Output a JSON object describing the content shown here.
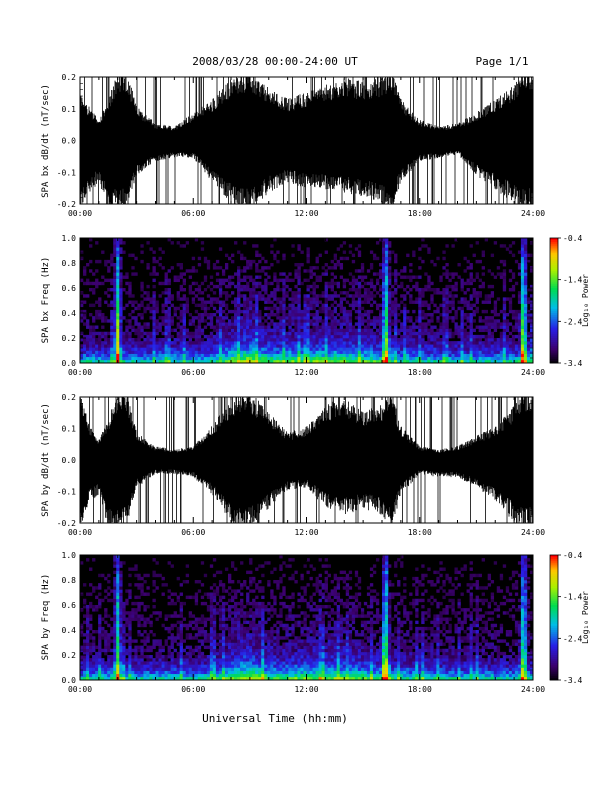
{
  "header": {
    "title": "2008/03/28  00:00-24:00 UT",
    "page": "Page 1/1"
  },
  "xaxis_label": "Universal Time (hh:mm)",
  "time_ticks": [
    "00:00",
    "06:00",
    "12:00",
    "18:00",
    "24:00"
  ],
  "colorbar": {
    "label": "Log₁₀ Power",
    "ticks": [
      "-0.4",
      "-1.4",
      "-2.4",
      "-3.4"
    ],
    "range": [
      -3.4,
      -0.4
    ]
  },
  "chart_data": [
    {
      "type": "line",
      "panel": "waveform-bx",
      "ylabel": "SPA bx dB/dt (nT/sec)",
      "x_range_hours": [
        0,
        24
      ],
      "ylim": [
        -0.2,
        0.2
      ],
      "yticks": [
        "0.2",
        "0.1",
        "0.0",
        "-0.1",
        "-0.2"
      ],
      "envelope": {
        "x_hours": [
          0,
          0.5,
          1,
          1.5,
          2,
          2.5,
          3,
          4,
          5,
          6,
          7,
          8,
          8.5,
          9,
          10,
          11,
          12,
          13,
          14,
          15,
          16,
          16.5,
          17,
          18,
          19,
          20,
          21,
          22,
          23,
          23.5,
          24
        ],
        "upper": [
          0.14,
          0.1,
          0.06,
          0.12,
          0.2,
          0.2,
          0.1,
          0.05,
          0.04,
          0.08,
          0.12,
          0.18,
          0.2,
          0.2,
          0.15,
          0.12,
          0.14,
          0.16,
          0.18,
          0.17,
          0.18,
          0.2,
          0.12,
          0.06,
          0.04,
          0.05,
          0.08,
          0.12,
          0.16,
          0.2,
          0.2
        ],
        "lower": [
          -0.2,
          -0.15,
          -0.12,
          -0.2,
          -0.2,
          -0.2,
          -0.1,
          -0.06,
          -0.05,
          -0.05,
          -0.12,
          -0.18,
          -0.2,
          -0.2,
          -0.15,
          -0.12,
          -0.14,
          -0.14,
          -0.15,
          -0.16,
          -0.18,
          -0.2,
          -0.12,
          -0.06,
          -0.05,
          -0.04,
          -0.1,
          -0.14,
          -0.18,
          -0.2,
          -0.2
        ]
      }
    },
    {
      "type": "heatmap",
      "panel": "spectrogram-bx",
      "ylabel": "SPA bx Freq (Hz)",
      "x_range_hours": [
        0,
        24
      ],
      "ylim": [
        0,
        1.0
      ],
      "yticks": [
        "1.0",
        "0.8",
        "0.6",
        "0.4",
        "0.2",
        "0.0"
      ],
      "value_range": [
        -3.4,
        -0.4
      ],
      "strong_bands_hours": [
        2.0,
        16.2,
        23.5
      ]
    },
    {
      "type": "line",
      "panel": "waveform-by",
      "ylabel": "SPA by dB/dt (nT/sec)",
      "x_range_hours": [
        0,
        24
      ],
      "ylim": [
        -0.2,
        0.2
      ],
      "yticks": [
        "0.2",
        "0.1",
        "0.0",
        "-0.1",
        "-0.2"
      ],
      "envelope": {
        "x_hours": [
          0,
          0.5,
          1,
          1.5,
          2,
          2.5,
          3,
          4,
          5,
          6,
          7,
          8,
          8.5,
          9,
          10,
          11,
          12,
          13,
          14,
          15,
          16,
          16.5,
          17,
          18,
          19,
          20,
          21,
          22,
          23,
          23.5,
          24
        ],
        "upper": [
          0.2,
          0.1,
          0.06,
          0.12,
          0.2,
          0.2,
          0.08,
          0.04,
          0.03,
          0.04,
          0.1,
          0.18,
          0.2,
          0.2,
          0.14,
          0.08,
          0.1,
          0.16,
          0.18,
          0.14,
          0.16,
          0.2,
          0.1,
          0.04,
          0.03,
          0.04,
          0.07,
          0.1,
          0.16,
          0.2,
          0.2
        ],
        "lower": [
          -0.2,
          -0.12,
          -0.1,
          -0.2,
          -0.2,
          -0.2,
          -0.08,
          -0.04,
          -0.04,
          -0.05,
          -0.1,
          -0.18,
          -0.2,
          -0.2,
          -0.14,
          -0.09,
          -0.08,
          -0.14,
          -0.16,
          -0.14,
          -0.16,
          -0.2,
          -0.1,
          -0.04,
          -0.05,
          -0.05,
          -0.08,
          -0.12,
          -0.18,
          -0.2,
          -0.2
        ]
      }
    },
    {
      "type": "heatmap",
      "panel": "spectrogram-by",
      "ylabel": "SPA by Freq (Hz)",
      "x_range_hours": [
        0,
        24
      ],
      "ylim": [
        0,
        1.0
      ],
      "yticks": [
        "1.0",
        "0.8",
        "0.6",
        "0.4",
        "0.2",
        "0.0"
      ],
      "value_range": [
        -3.4,
        -0.4
      ],
      "strong_bands_hours": [
        2.0,
        16.2,
        23.5
      ]
    }
  ]
}
